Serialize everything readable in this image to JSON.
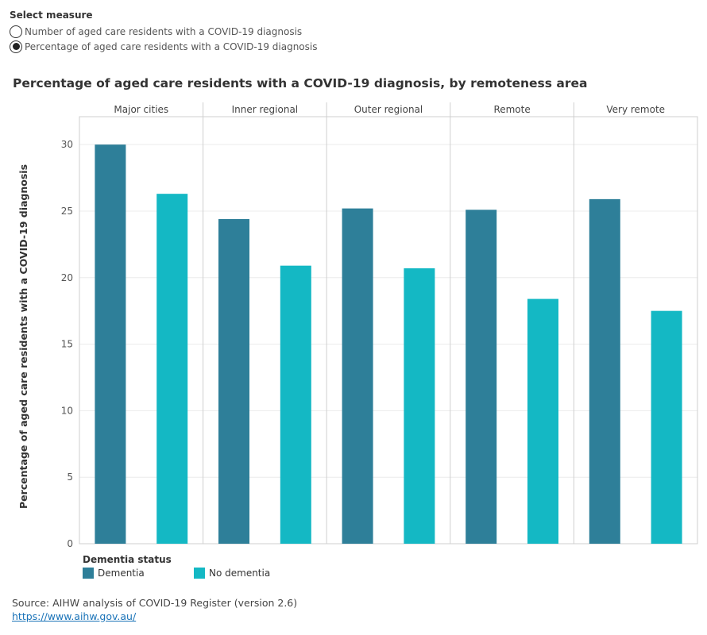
{
  "measure": {
    "title": "Select measure",
    "options": [
      {
        "label": "Number of aged care residents with a COVID-19 diagnosis",
        "selected": false
      },
      {
        "label": "Percentage of aged care residents with a COVID-19 diagnosis",
        "selected": true
      }
    ]
  },
  "legend": {
    "title": "Dementia status",
    "items": [
      {
        "label": "Dementia",
        "color": "#2e7f99"
      },
      {
        "label": "No dementia",
        "color": "#14b8c4"
      }
    ]
  },
  "source": {
    "text": "Source: AIHW analysis of COVID-19 Register (version 2.6)",
    "link": "https://www.aihw.gov.au/"
  },
  "chart_data": {
    "type": "bar",
    "title": "Percentage of aged care residents with a COVID-19 diagnosis, by remoteness area",
    "ylabel": "Percentage of aged care residents with a COVID-19 diagnosis",
    "xlabel": "",
    "categories": [
      "Major cities",
      "Inner regional",
      "Outer regional",
      "Remote",
      "Very remote"
    ],
    "series": [
      {
        "name": "Dementia",
        "color": "#2e7f99",
        "values": [
          30.0,
          24.4,
          25.2,
          25.1,
          25.9
        ]
      },
      {
        "name": "No dementia",
        "color": "#14b8c4",
        "values": [
          26.3,
          20.9,
          20.7,
          18.4,
          17.5
        ]
      }
    ],
    "ylim": [
      0,
      31.5
    ],
    "yticks": [
      0,
      5,
      10,
      15,
      20,
      25,
      30
    ],
    "grid": true,
    "legend_position": "bottom-left"
  }
}
